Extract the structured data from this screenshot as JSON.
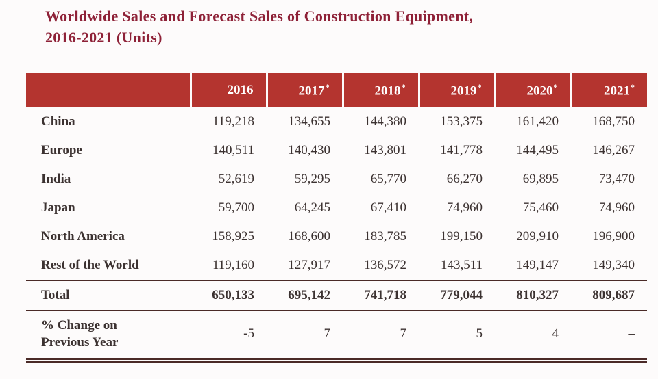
{
  "title": {
    "line1": "Worldwide Sales and Forecast Sales of Construction Equipment,",
    "line2": "2016-2021 (Units)"
  },
  "table": {
    "header": [
      {
        "text": "",
        "sup": ""
      },
      {
        "text": "2016",
        "sup": ""
      },
      {
        "text": "2017",
        "sup": "*"
      },
      {
        "text": "2018",
        "sup": "*"
      },
      {
        "text": "2019",
        "sup": "*"
      },
      {
        "text": "2020",
        "sup": "*"
      },
      {
        "text": "2021",
        "sup": "*"
      }
    ],
    "rows": [
      {
        "label": "China",
        "values": [
          "119,218",
          "134,655",
          "144,380",
          "153,375",
          "161,420",
          "168,750"
        ]
      },
      {
        "label": "Europe",
        "values": [
          "140,511",
          "140,430",
          "143,801",
          "141,778",
          "144,495",
          "146,267"
        ]
      },
      {
        "label": "India",
        "values": [
          "52,619",
          "59,295",
          "65,770",
          "66,270",
          "69,895",
          "73,470"
        ]
      },
      {
        "label": "Japan",
        "values": [
          "59,700",
          "64,245",
          "67,410",
          "74,960",
          "75,460",
          "74,960"
        ]
      },
      {
        "label": "North America",
        "values": [
          "158,925",
          "168,600",
          "183,785",
          "199,150",
          "209,910",
          "196,900"
        ]
      },
      {
        "label": "Rest of the World",
        "values": [
          "119,160",
          "127,917",
          "136,572",
          "143,511",
          "149,147",
          "149,340"
        ]
      }
    ],
    "total_row": {
      "label": "Total",
      "values": [
        "650,133",
        "695,142",
        "741,718",
        "779,044",
        "810,327",
        "809,687"
      ]
    },
    "change_row": {
      "label_line1": "% Change on",
      "label_line2": "Previous Year",
      "values": [
        "-5",
        "7",
        "7",
        "5",
        "4",
        "–"
      ]
    }
  },
  "colors": {
    "header_bg": "#b4342f",
    "header_text": "#ffffff",
    "title_text": "#8e2137",
    "body_text": "#3c3231",
    "rule": "#4a2a27"
  }
}
